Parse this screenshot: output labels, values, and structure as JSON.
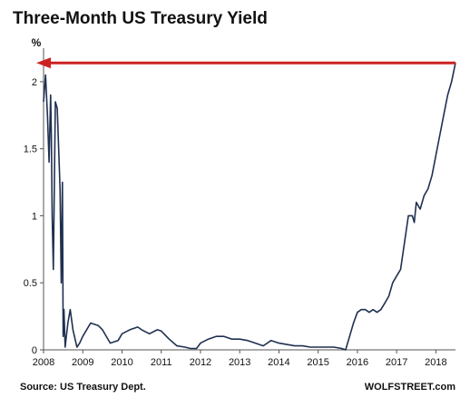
{
  "chart_data": {
    "type": "line",
    "title": "Three-Month US Treasury Yield",
    "ylabel": "%",
    "xlabel": "",
    "source": "Source: US Treasury Dept.",
    "credit": "WOLFSTREET.com",
    "ylim": [
      0,
      2.25
    ],
    "y_ticks": [
      0,
      0.5,
      1,
      1.5,
      2
    ],
    "y_tick_labels": [
      "0",
      "0.5",
      "1",
      "1.5",
      "2"
    ],
    "xlim": [
      2008.0,
      2018.5
    ],
    "x_ticks": [
      2008,
      2009,
      2010,
      2011,
      2012,
      2013,
      2014,
      2015,
      2016,
      2017,
      2018
    ],
    "x_tick_labels": [
      "2008",
      "2009",
      "2010",
      "2011",
      "2012",
      "2013",
      "2014",
      "2015",
      "2016",
      "2017",
      "2018"
    ],
    "grid": false,
    "series": [
      {
        "color": "#1f3050",
        "x": [
          2008.0,
          2008.05,
          2008.1,
          2008.14,
          2008.18,
          2008.2,
          2008.22,
          2008.25,
          2008.3,
          2008.35,
          2008.42,
          2008.45,
          2008.48,
          2008.5,
          2008.52,
          2008.55,
          2008.58,
          2008.62,
          2008.68,
          2008.75,
          2008.85,
          2008.92,
          2009.0,
          2009.2,
          2009.4,
          2009.5,
          2009.7,
          2009.9,
          2010.0,
          2010.2,
          2010.4,
          2010.5,
          2010.7,
          2010.9,
          2011.0,
          2011.2,
          2011.4,
          2011.6,
          2011.75,
          2011.9,
          2012.0,
          2012.2,
          2012.4,
          2012.6,
          2012.8,
          2013.0,
          2013.2,
          2013.4,
          2013.6,
          2013.8,
          2014.0,
          2014.2,
          2014.4,
          2014.6,
          2014.8,
          2015.0,
          2015.2,
          2015.4,
          2015.6,
          2015.7,
          2015.8,
          2015.9,
          2016.0,
          2016.1,
          2016.2,
          2016.3,
          2016.4,
          2016.5,
          2016.6,
          2016.7,
          2016.8,
          2016.9,
          2017.0,
          2017.1,
          2017.2,
          2017.3,
          2017.4,
          2017.45,
          2017.5,
          2017.6,
          2017.7,
          2017.8,
          2017.9,
          2018.0,
          2018.1,
          2018.2,
          2018.3,
          2018.4,
          2018.5
        ],
        "values": [
          1.85,
          2.05,
          1.75,
          1.4,
          1.9,
          1.6,
          1.0,
          0.6,
          1.85,
          1.8,
          1.2,
          0.5,
          1.25,
          0.1,
          0.3,
          0.02,
          0.1,
          0.2,
          0.3,
          0.15,
          0.02,
          0.05,
          0.1,
          0.2,
          0.18,
          0.15,
          0.05,
          0.07,
          0.12,
          0.15,
          0.17,
          0.15,
          0.12,
          0.15,
          0.14,
          0.08,
          0.03,
          0.02,
          0.01,
          0.01,
          0.05,
          0.08,
          0.1,
          0.1,
          0.08,
          0.08,
          0.07,
          0.05,
          0.03,
          0.07,
          0.05,
          0.04,
          0.03,
          0.03,
          0.02,
          0.02,
          0.02,
          0.02,
          0.01,
          0.0,
          0.1,
          0.2,
          0.28,
          0.3,
          0.3,
          0.28,
          0.3,
          0.28,
          0.3,
          0.35,
          0.4,
          0.5,
          0.55,
          0.6,
          0.8,
          1.0,
          1.0,
          0.95,
          1.1,
          1.05,
          1.15,
          1.2,
          1.3,
          1.45,
          1.6,
          1.75,
          1.9,
          2.0,
          2.14
        ]
      }
    ],
    "annotations": [
      {
        "type": "arrow",
        "direction": "left",
        "y": 2.14,
        "color": "#cc2222"
      }
    ]
  }
}
